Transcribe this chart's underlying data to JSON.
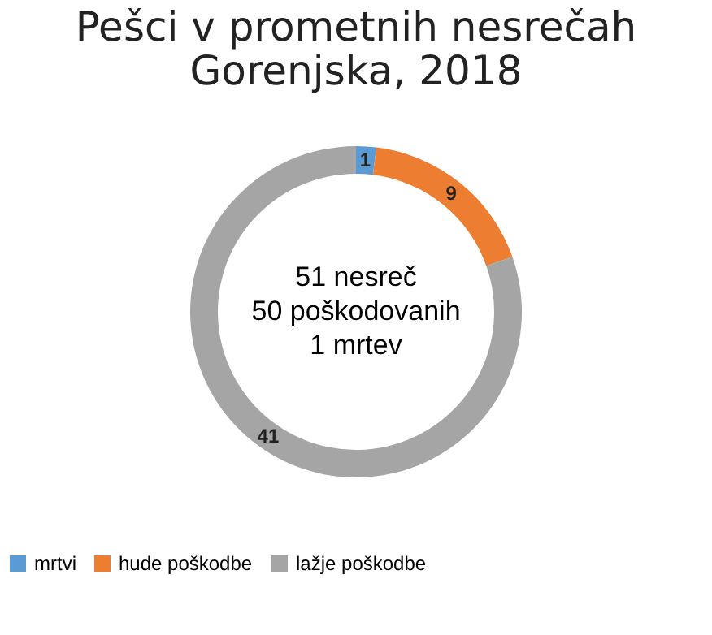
{
  "chart_data": {
    "type": "donut",
    "title": "Pešci v prometnih nesrečah\nGorenjska, 2018",
    "categories": [
      "mrtvi",
      "hude poškodbe",
      "lažje poškodbe"
    ],
    "values": [
      1,
      9,
      41
    ],
    "colors": [
      "#5b9bd5",
      "#ed7d31",
      "#a5a5a5"
    ],
    "data_labels": true,
    "legend": "bottom",
    "annotations": [
      "51 nesreč",
      "50 poškodovanih",
      "1 mrtev"
    ]
  }
}
